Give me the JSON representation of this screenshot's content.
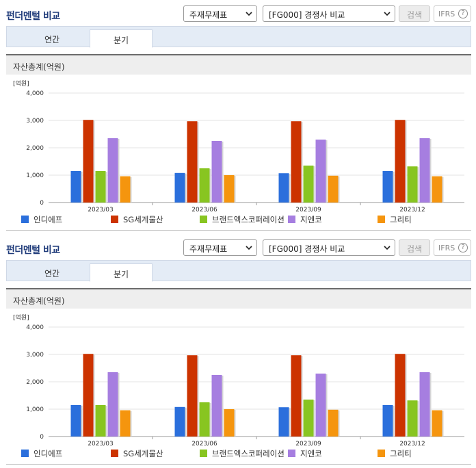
{
  "panels": [
    {
      "title": "펀더멘털 비교",
      "select_type": "주재무제표",
      "select_compare": "[FG000] 경쟁사 비교",
      "search_label": "검색",
      "ifrs_label": "IFRS",
      "help_symbol": "?",
      "tabs": [
        "연간",
        "분기"
      ],
      "active_tab": "분기",
      "section_title": "자산총계(억원)"
    },
    {
      "title": "펀더멘털 비교",
      "select_type": "주재무제표",
      "select_compare": "[FG000] 경쟁사 비교",
      "search_label": "검색",
      "ifrs_label": "IFRS",
      "help_symbol": "?",
      "tabs": [
        "연간",
        "분기"
      ],
      "active_tab": "분기",
      "section_title": "자산총계(억원)"
    }
  ],
  "chart_data": [
    {
      "type": "bar",
      "unit_label": "[억원]",
      "categories": [
        "2023/03",
        "2023/06",
        "2023/09",
        "2023/12"
      ],
      "ylim": [
        0,
        4000
      ],
      "yticks": [
        "0",
        "1,000",
        "2,000",
        "3,000",
        "4,000"
      ],
      "grid": true,
      "legend_position": "bottom",
      "series": [
        {
          "name": "인디에프",
          "color": "#2b6fdc",
          "values": [
            1150,
            1080,
            1070,
            1150
          ]
        },
        {
          "name": "SG세계물산",
          "color": "#cc3300",
          "values": [
            3020,
            2970,
            2970,
            3020
          ]
        },
        {
          "name": "브랜드엑스코퍼레이션",
          "color": "#88c521",
          "values": [
            1150,
            1250,
            1350,
            1320
          ]
        },
        {
          "name": "지엔코",
          "color": "#a67ee0",
          "values": [
            2350,
            2250,
            2300,
            2350
          ]
        },
        {
          "name": "그리티",
          "color": "#f5950e",
          "values": [
            960,
            1000,
            980,
            960
          ]
        }
      ]
    },
    {
      "type": "bar",
      "unit_label": "[억원]",
      "categories": [
        "2023/03",
        "2023/06",
        "2023/09",
        "2023/12"
      ],
      "ylim": [
        0,
        4000
      ],
      "yticks": [
        "0",
        "1,000",
        "2,000",
        "3,000",
        "4,000"
      ],
      "grid": true,
      "legend_position": "bottom",
      "series": [
        {
          "name": "인디에프",
          "color": "#2b6fdc",
          "values": [
            1150,
            1080,
            1070,
            1150
          ]
        },
        {
          "name": "SG세계물산",
          "color": "#cc3300",
          "values": [
            3020,
            2970,
            2970,
            3020
          ]
        },
        {
          "name": "브랜드엑스코퍼레이션",
          "color": "#88c521",
          "values": [
            1150,
            1250,
            1350,
            1320
          ]
        },
        {
          "name": "지엔코",
          "color": "#a67ee0",
          "values": [
            2350,
            2250,
            2300,
            2350
          ]
        },
        {
          "name": "그리티",
          "color": "#f5950e",
          "values": [
            960,
            1000,
            980,
            960
          ]
        }
      ]
    }
  ]
}
